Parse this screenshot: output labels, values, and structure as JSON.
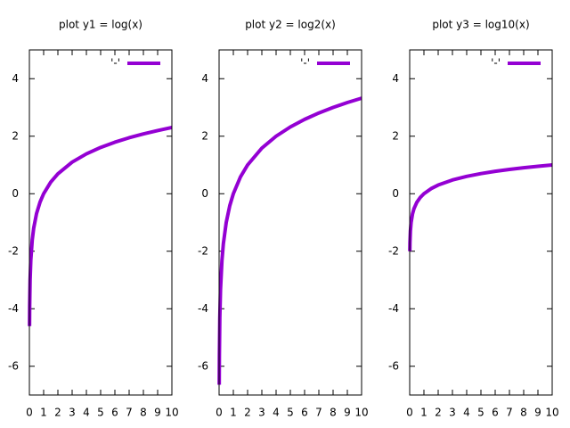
{
  "chart_data": [
    {
      "type": "line",
      "title": "plot y1 = log(x)",
      "legend": "top-right",
      "x": [
        0.01,
        0.02,
        0.05,
        0.1,
        0.2,
        0.3,
        0.5,
        0.75,
        1,
        1.5,
        2,
        3,
        4,
        5,
        6,
        7,
        8,
        9,
        10
      ],
      "series": [
        {
          "name": "'-'",
          "color": "#9400d3",
          "values": [
            -4.605,
            -3.912,
            -2.996,
            -2.303,
            -1.609,
            -1.204,
            -0.693,
            -0.288,
            0,
            0.405,
            0.693,
            1.099,
            1.386,
            1.609,
            1.792,
            1.946,
            2.079,
            2.197,
            2.303
          ]
        }
      ],
      "xlim": [
        0,
        10
      ],
      "xticks": [
        0,
        1,
        2,
        3,
        4,
        5,
        6,
        7,
        8,
        9,
        10
      ],
      "ylim": [
        -7,
        5
      ],
      "yticks": [
        -6,
        -4,
        -2,
        0,
        2,
        4
      ]
    },
    {
      "type": "line",
      "title": "plot y2 = log2(x)",
      "legend": "top-right",
      "x": [
        0.01,
        0.02,
        0.05,
        0.1,
        0.2,
        0.3,
        0.5,
        0.75,
        1,
        1.5,
        2,
        3,
        4,
        5,
        6,
        7,
        8,
        9,
        10
      ],
      "series": [
        {
          "name": "'-'",
          "color": "#9400d3",
          "values": [
            -6.644,
            -5.644,
            -4.322,
            -3.322,
            -2.322,
            -1.737,
            -1,
            -0.415,
            0,
            0.585,
            1,
            1.585,
            2,
            2.322,
            2.585,
            2.807,
            3,
            3.17,
            3.322
          ]
        }
      ],
      "xlim": [
        0,
        10
      ],
      "xticks": [
        0,
        1,
        2,
        3,
        4,
        5,
        6,
        7,
        8,
        9,
        10
      ],
      "ylim": [
        -7,
        5
      ],
      "yticks": [
        -6,
        -4,
        -2,
        0,
        2,
        4
      ]
    },
    {
      "type": "line",
      "title": "plot y3 = log10(x)",
      "legend": "top-right",
      "x": [
        0.01,
        0.02,
        0.05,
        0.1,
        0.2,
        0.3,
        0.5,
        0.75,
        1,
        1.5,
        2,
        3,
        4,
        5,
        6,
        7,
        8,
        9,
        10
      ],
      "series": [
        {
          "name": "'-'",
          "color": "#9400d3",
          "values": [
            -2,
            -1.699,
            -1.301,
            -1,
            -0.699,
            -0.523,
            -0.301,
            -0.125,
            0,
            0.176,
            0.301,
            0.477,
            0.602,
            0.699,
            0.778,
            0.845,
            0.903,
            0.954,
            1
          ]
        }
      ],
      "xlim": [
        0,
        10
      ],
      "xticks": [
        0,
        1,
        2,
        3,
        4,
        5,
        6,
        7,
        8,
        9,
        10
      ],
      "ylim": [
        -7,
        5
      ],
      "yticks": [
        -6,
        -4,
        -2,
        0,
        2,
        4
      ]
    }
  ]
}
